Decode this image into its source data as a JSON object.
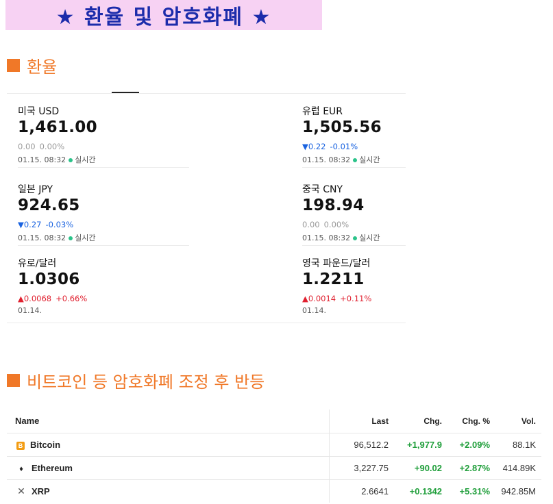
{
  "banner": {
    "title": "★ 환율 및 암호화폐 ★"
  },
  "exchange_section": {
    "title": "환율"
  },
  "exchange_rates": [
    {
      "name": "미국 USD",
      "value": "1,461.00",
      "change": "0.00",
      "change_pct": "0.00%",
      "direction": "flat",
      "time": "01.15. 08:32",
      "status": "실시간"
    },
    {
      "name": "유럽 EUR",
      "value": "1,505.56",
      "change": "▼0.22",
      "change_pct": "-0.01%",
      "direction": "down",
      "time": "01.15. 08:32",
      "status": "실시간"
    },
    {
      "name": "일본 JPY",
      "value": "924.65",
      "change": "▼0.27",
      "change_pct": "-0.03%",
      "direction": "down",
      "time": "01.15. 08:32",
      "status": "실시간"
    },
    {
      "name": "중국 CNY",
      "value": "198.94",
      "change": "0.00",
      "change_pct": "0.00%",
      "direction": "flat",
      "time": "01.15. 08:32",
      "status": "실시간"
    },
    {
      "name": "유로/달러",
      "value": "1.0306",
      "change": "▲0.0068",
      "change_pct": "+0.66%",
      "direction": "up",
      "time": "01.14.",
      "status": ""
    },
    {
      "name": "영국 파운드/달러",
      "value": "1.2211",
      "change": "▲0.0014",
      "change_pct": "+0.11%",
      "direction": "up",
      "time": "01.14.",
      "status": ""
    }
  ],
  "crypto_section": {
    "title": "비트코인 등 암호화폐 조정 후 반등"
  },
  "crypto_table": {
    "headers": {
      "name": "Name",
      "last": "Last",
      "chg": "Chg.",
      "chg_pct": "Chg. %",
      "vol": "Vol."
    },
    "rows": [
      {
        "icon": "bitcoin-icon",
        "name": "Bitcoin",
        "last": "96,512.2",
        "chg": "+1,977.9",
        "chg_pct": "+2.09%",
        "vol": "88.1K"
      },
      {
        "icon": "ethereum-icon",
        "name": "Ethereum",
        "last": "3,227.75",
        "chg": "+90.02",
        "chg_pct": "+2.87%",
        "vol": "414.89K"
      },
      {
        "icon": "xrp-icon",
        "name": "XRP",
        "last": "2.6641",
        "chg": "+0.1342",
        "chg_pct": "+5.31%",
        "vol": "942.85M"
      }
    ]
  },
  "colors": {
    "accent": "#f07828",
    "banner_bg": "#f7d2f3",
    "banner_text": "#1c2cab",
    "up": "#e0202f",
    "down": "#1a63e0",
    "positive": "#1f9e3a"
  }
}
